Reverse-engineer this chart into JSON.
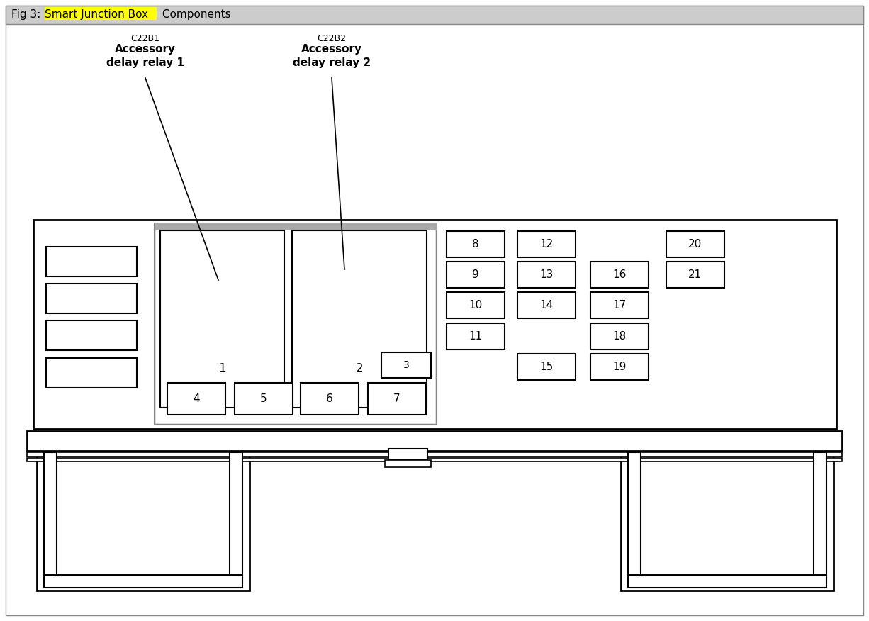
{
  "title_prefix": "Fig 3: ",
  "title_highlight": "Smart Junction Box",
  "title_suffix": " Components",
  "highlight_color": "#FFFF00",
  "bg_color": "#FFFFFF",
  "border_color": "#000000",
  "header_bg": "#CCCCCC",
  "label1_code": "C22B1",
  "label1_name": "Accessory\ndelay relay 1",
  "label2_code": "C22B2",
  "label2_name": "Accessory\ndelay relay 2",
  "relay1_label": "1",
  "relay2_label": "2",
  "box3_label": "3",
  "bottom_boxes": [
    "4",
    "5",
    "6",
    "7"
  ],
  "grid_boxes": [
    {
      "label": "8",
      "col": 0,
      "row": 0
    },
    {
      "label": "9",
      "col": 0,
      "row": 1
    },
    {
      "label": "10",
      "col": 0,
      "row": 2
    },
    {
      "label": "11",
      "col": 0,
      "row": 3
    },
    {
      "label": "12",
      "col": 1,
      "row": 0
    },
    {
      "label": "13",
      "col": 1,
      "row": 1
    },
    {
      "label": "14",
      "col": 1,
      "row": 2
    },
    {
      "label": "15",
      "col": 1,
      "row": 4
    },
    {
      "label": "16",
      "col": 2,
      "row": 1
    },
    {
      "label": "17",
      "col": 2,
      "row": 2
    },
    {
      "label": "18",
      "col": 2,
      "row": 3
    },
    {
      "label": "19",
      "col": 2,
      "row": 4
    },
    {
      "label": "20",
      "col": 3,
      "row": 0
    },
    {
      "label": "21",
      "col": 3,
      "row": 1
    }
  ]
}
